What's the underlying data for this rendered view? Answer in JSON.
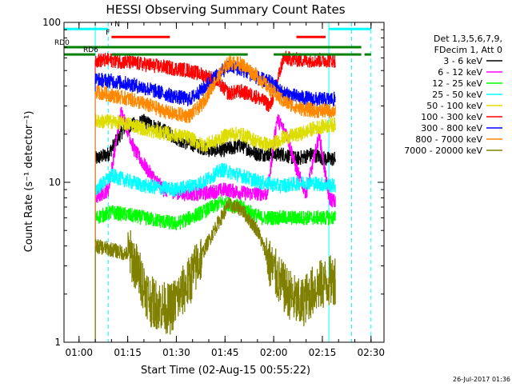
{
  "chart_data": {
    "type": "line",
    "title": "HESSI Observing Summary Count Rates",
    "xlabel": "Start Time (02-Aug-15 00:55:22)",
    "ylabel": "Count Rate (s⁻¹ detector⁻¹)",
    "yscale": "log",
    "ylim": [
      1,
      100
    ],
    "xlim": [
      "00:55:22",
      "02:34:00"
    ],
    "x_ticks": [
      "01:00",
      "01:15",
      "01:30",
      "01:45",
      "02:00",
      "02:15",
      "02:30"
    ],
    "y_ticks": [
      "1",
      "10",
      "100"
    ],
    "timestamp": "26-Jul-2017 01:36",
    "legend_header": [
      "Det 1,3,5,6,7,9,",
      "FDecim 1, Att 0"
    ],
    "legend_position": "right",
    "series": [
      {
        "name": "3 - 6 keV",
        "color": "#000000",
        "x": [
          "01:05",
          "01:09",
          "01:14",
          "01:20",
          "01:26",
          "01:32",
          "01:36",
          "01:40",
          "01:45",
          "01:50",
          "01:55",
          "01:59",
          "02:03",
          "02:07",
          "02:12",
          "02:16",
          "02:19"
        ],
        "values": [
          14,
          15,
          22,
          24,
          21,
          18,
          17,
          16,
          16,
          17,
          15,
          15,
          15,
          14,
          15,
          14,
          14
        ]
      },
      {
        "name": "6 - 12 keV",
        "color": "#ff00ff",
        "x": [
          "01:05",
          "01:09",
          "01:13",
          "01:17",
          "01:21",
          "01:26",
          "01:32",
          "01:38",
          "01:45",
          "01:52",
          "01:58",
          "02:01",
          "02:04",
          "02:07",
          "02:10",
          "02:14",
          "02:17",
          "02:19"
        ],
        "values": [
          8,
          9,
          28,
          16,
          12,
          9,
          8.5,
          8.5,
          9,
          8.5,
          8.5,
          25,
          20,
          12,
          8.5,
          20,
          8,
          7.5
        ]
      },
      {
        "name": "12 - 25 keV",
        "color": "#00ff00",
        "x": [
          "01:05",
          "01:10",
          "01:20",
          "01:30",
          "01:38",
          "01:44",
          "01:50",
          "01:56",
          "02:02",
          "02:10",
          "02:19"
        ],
        "values": [
          6,
          6.5,
          6,
          5.5,
          6.5,
          7.5,
          7,
          6,
          6,
          6,
          6
        ]
      },
      {
        "name": "25 - 50 keV",
        "color": "#00ffff",
        "x": [
          "01:05",
          "01:10",
          "01:20",
          "01:30",
          "01:38",
          "01:44",
          "01:50",
          "01:56",
          "02:02",
          "02:10",
          "02:19"
        ],
        "values": [
          9,
          11,
          9.5,
          9,
          10,
          12,
          11,
          10,
          9.5,
          10,
          9.5
        ]
      },
      {
        "name": "50 - 100 keV",
        "color": "#dddd00",
        "x": [
          "01:05",
          "01:10",
          "01:16",
          "01:22",
          "01:28",
          "01:34",
          "01:38",
          "01:42",
          "01:46",
          "01:50",
          "01:55",
          "01:59",
          "02:03",
          "02:08",
          "02:13",
          "02:19"
        ],
        "values": [
          24,
          24,
          23,
          21,
          20,
          19,
          17,
          18,
          20,
          20,
          18,
          17,
          19,
          20,
          22,
          23
        ]
      },
      {
        "name": "100 - 300 keV",
        "color": "#ff0000",
        "x": [
          "01:05",
          "01:10",
          "01:16",
          "01:22",
          "01:28",
          "01:34",
          "01:38",
          "01:42",
          "01:46",
          "01:50",
          "01:55",
          "01:59",
          "02:03",
          "02:08",
          "02:13",
          "02:19"
        ],
        "values": [
          58,
          58,
          56,
          54,
          52,
          50,
          47,
          44,
          36,
          37,
          34,
          30,
          60,
          58,
          58,
          58
        ]
      },
      {
        "name": "300 - 800 keV",
        "color": "#0000ff",
        "x": [
          "01:05",
          "01:10",
          "01:16",
          "01:22",
          "01:28",
          "01:34",
          "01:38",
          "01:42",
          "01:46",
          "01:50",
          "01:55",
          "01:59",
          "02:03",
          "02:08",
          "02:13",
          "02:19"
        ],
        "values": [
          44,
          43,
          41,
          38,
          35,
          33,
          38,
          46,
          53,
          51,
          45,
          42,
          36,
          34,
          33,
          33
        ]
      },
      {
        "name": "800 - 7000 keV",
        "color": "#ff8800",
        "x": [
          "01:05",
          "01:10",
          "01:16",
          "01:22",
          "01:28",
          "01:34",
          "01:38",
          "01:42",
          "01:46",
          "01:50",
          "01:55",
          "01:59",
          "02:03",
          "02:08",
          "02:13",
          "02:19"
        ],
        "values": [
          37,
          35,
          33,
          30,
          27,
          26,
          31,
          43,
          56,
          55,
          46,
          38,
          32,
          29,
          28,
          28
        ]
      },
      {
        "name": "7000 - 20000 keV",
        "color": "#808000",
        "x": [
          "01:05",
          "01:10",
          "01:16",
          "01:22",
          "01:28",
          "01:34",
          "01:38",
          "01:42",
          "01:46",
          "01:50",
          "01:55",
          "01:59",
          "02:03",
          "02:08",
          "02:13",
          "02:19"
        ],
        "values": [
          4,
          3.8,
          3.5,
          1.8,
          1.6,
          2.4,
          3.6,
          5.2,
          7.2,
          6.8,
          5,
          3,
          2.2,
          1.7,
          2.2,
          2.5
        ]
      }
    ],
    "annotations": [
      {
        "label": "N",
        "color": "#00ffff",
        "level": 91,
        "segments": [
          [
            "00:55:22",
            "01:09"
          ],
          [
            "02:17",
            "02:30"
          ]
        ]
      },
      {
        "label": "F",
        "color": "#ff0000",
        "level": 81,
        "segments": [
          [
            "01:10",
            "01:28"
          ],
          [
            "02:07",
            "02:16"
          ]
        ]
      },
      {
        "label": "RD0",
        "color": "#008000",
        "level": 70,
        "segments": [
          [
            "00:55:22",
            "02:27"
          ]
        ]
      },
      {
        "label": "RD6",
        "color": "#008000",
        "level": 63,
        "segments": [
          [
            "00:55:22",
            "01:05"
          ],
          [
            "01:10",
            "01:52"
          ],
          [
            "02:00",
            "02:27"
          ],
          [
            "02:28",
            "02:30"
          ]
        ]
      }
    ],
    "vlines": [
      {
        "x": "01:05",
        "color": "#00ffff",
        "style": "solid"
      },
      {
        "x": "01:09",
        "color": "#00ffff",
        "style": "dashed"
      },
      {
        "x": "02:17",
        "color": "#00ffff",
        "style": "solid"
      },
      {
        "x": "02:24",
        "color": "#00ffff",
        "style": "dashed"
      },
      {
        "x": "02:30",
        "color": "#00ffff",
        "style": "dashed"
      }
    ]
  }
}
